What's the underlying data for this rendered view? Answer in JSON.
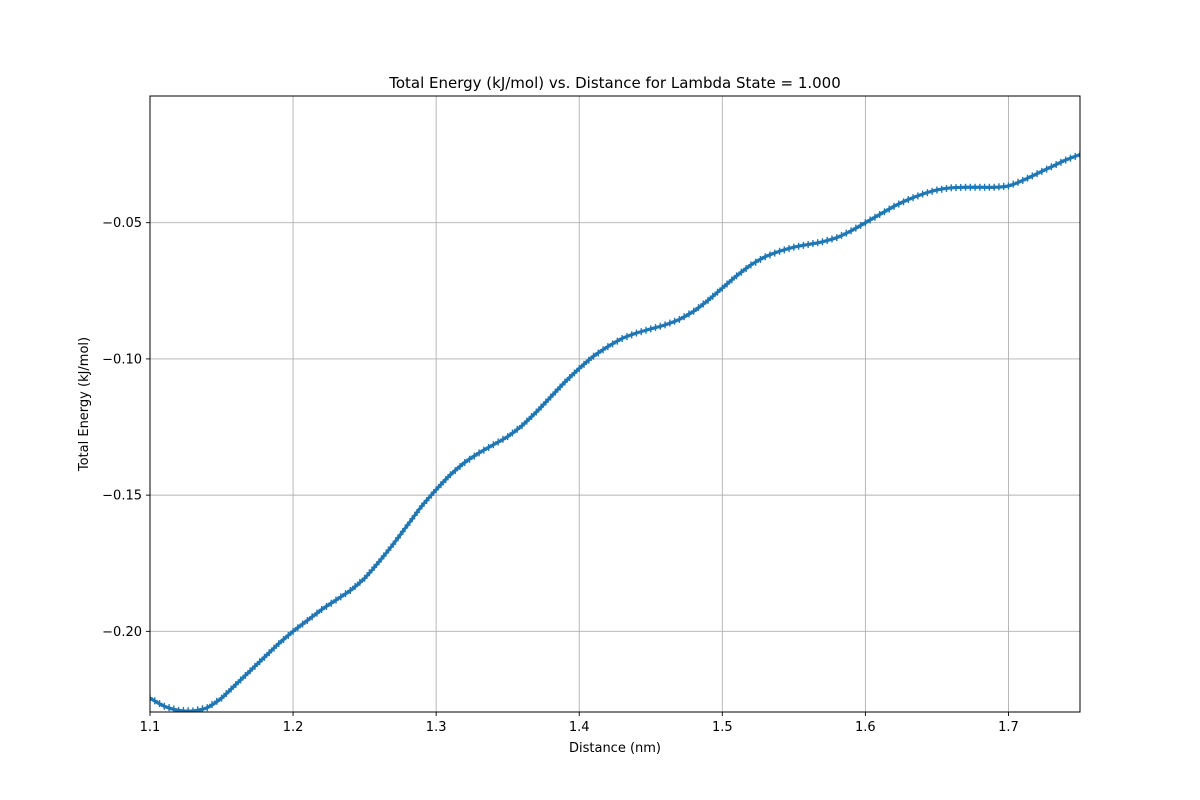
{
  "chart_data": {
    "type": "line",
    "title": "Total Energy (kJ/mol) vs. Distance for Lambda State = 1.000",
    "xlabel": "Distance (nm)",
    "ylabel": "Total Energy (kJ/mol)",
    "xlim": [
      1.1,
      1.75
    ],
    "ylim": [
      -0.2296,
      -0.0035
    ],
    "x_ticks": [
      1.1,
      1.2,
      1.3,
      1.4,
      1.5,
      1.6,
      1.7
    ],
    "x_tick_labels": [
      "1.1",
      "1.2",
      "1.3",
      "1.4",
      "1.5",
      "1.6",
      "1.7"
    ],
    "y_ticks": [
      -0.05,
      -0.1,
      -0.15,
      -0.2
    ],
    "y_tick_labels": [
      "−0.05",
      "−0.10",
      "−0.15",
      "−0.20"
    ],
    "grid": true,
    "marker": "plus",
    "line_color": "#1f77b4",
    "series": [
      {
        "x": [
          1.1,
          1.11,
          1.12,
          1.13,
          1.14,
          1.15,
          1.16,
          1.17,
          1.18,
          1.19,
          1.2,
          1.21,
          1.22,
          1.23,
          1.24,
          1.25,
          1.26,
          1.27,
          1.28,
          1.29,
          1.3,
          1.31,
          1.32,
          1.33,
          1.34,
          1.35,
          1.36,
          1.37,
          1.38,
          1.39,
          1.4,
          1.41,
          1.42,
          1.43,
          1.44,
          1.45,
          1.46,
          1.47,
          1.48,
          1.49,
          1.5,
          1.51,
          1.52,
          1.53,
          1.54,
          1.55,
          1.56,
          1.57,
          1.58,
          1.59,
          1.6,
          1.61,
          1.62,
          1.63,
          1.64,
          1.65,
          1.66,
          1.67,
          1.68,
          1.69,
          1.7,
          1.71,
          1.72,
          1.73,
          1.74,
          1.75
        ],
        "y": [
          -0.2245,
          -0.2275,
          -0.229,
          -0.2292,
          -0.228,
          -0.2245,
          -0.2195,
          -0.2145,
          -0.2095,
          -0.2045,
          -0.2,
          -0.196,
          -0.192,
          -0.1885,
          -0.185,
          -0.1805,
          -0.1745,
          -0.168,
          -0.161,
          -0.154,
          -0.148,
          -0.1425,
          -0.138,
          -0.1345,
          -0.1315,
          -0.1285,
          -0.1245,
          -0.1195,
          -0.114,
          -0.1085,
          -0.1035,
          -0.099,
          -0.0955,
          -0.0925,
          -0.0905,
          -0.089,
          -0.0875,
          -0.0855,
          -0.0825,
          -0.0785,
          -0.074,
          -0.0695,
          -0.0655,
          -0.0625,
          -0.0605,
          -0.059,
          -0.058,
          -0.057,
          -0.0555,
          -0.053,
          -0.05,
          -0.047,
          -0.044,
          -0.0415,
          -0.0395,
          -0.038,
          -0.0372,
          -0.037,
          -0.037,
          -0.037,
          -0.0365,
          -0.0345,
          -0.032,
          -0.0295,
          -0.027,
          -0.025
        ]
      }
    ]
  }
}
